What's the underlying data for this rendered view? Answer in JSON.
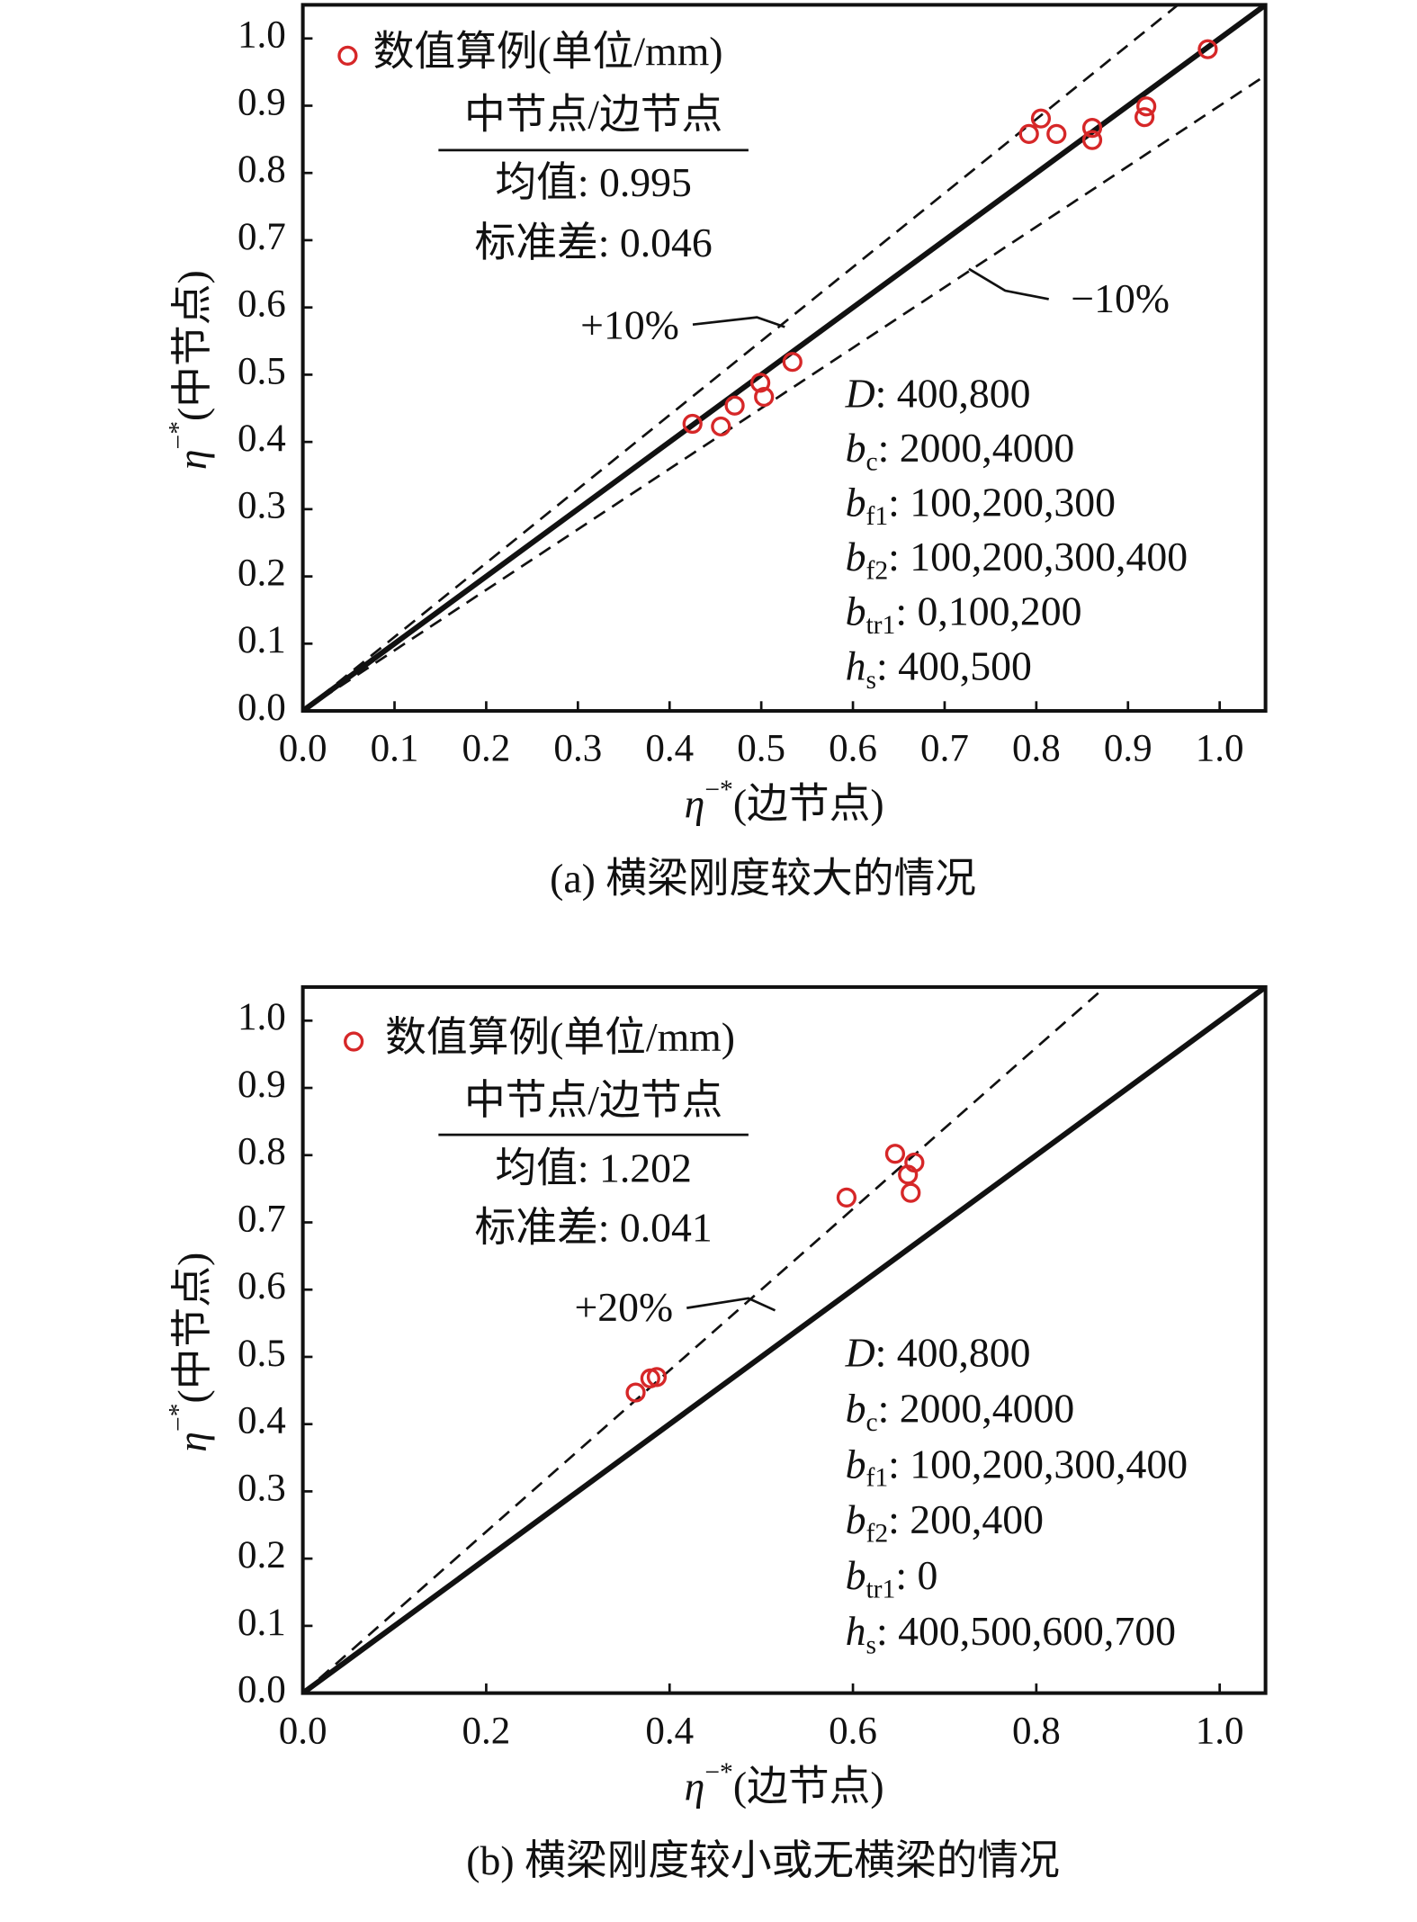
{
  "chart_data": [
    {
      "type": "scatter",
      "caption": "(a) 横梁刚度较大的情况",
      "xlabel": {
        "symbol": "η",
        "sup": "−*",
        "text": "(边节点)"
      },
      "ylabel": {
        "symbol": "η",
        "sup": "−*",
        "text": "(中节点)"
      },
      "xlim": [
        0,
        1.05
      ],
      "ylim": [
        0,
        1.05
      ],
      "xticks": [
        {
          "value": 0,
          "label": "0.0"
        },
        0.1,
        0.2,
        0.3,
        0.4,
        0.5,
        0.6,
        0.7,
        0.8,
        0.9,
        {
          "value": 1,
          "label": "1.0"
        }
      ],
      "yticks": [
        {
          "value": 0,
          "label": "0.0"
        },
        0.1,
        0.2,
        0.3,
        0.4,
        0.5,
        0.6,
        0.7,
        0.8,
        0.9,
        {
          "value": 1,
          "label": "1.0"
        }
      ],
      "x": [
        0.425,
        0.456,
        0.471,
        0.499,
        0.503,
        0.534,
        0.792,
        0.805,
        0.822,
        0.861,
        0.861,
        0.918,
        0.92,
        0.987
      ],
      "series": [
        {
          "name": "数值算例(单位/mm)",
          "color": "#d62728",
          "values": [
            0.427,
            0.423,
            0.454,
            0.488,
            0.467,
            0.519,
            0.858,
            0.881,
            0.858,
            0.867,
            0.849,
            0.883,
            0.899,
            0.984
          ]
        }
      ],
      "reference_lines": [
        {
          "slope": 1,
          "dash": false
        },
        {
          "slope": 1.1,
          "dash": true,
          "label": "+10%"
        },
        {
          "slope": 0.9,
          "dash": true,
          "label": "−10%"
        }
      ],
      "stats": {
        "heading": "中节点/边节点",
        "mean": "均值: 0.995",
        "std": "标准差: 0.046"
      },
      "params": [
        {
          "symbol": "D",
          "text": ": 400,800"
        },
        {
          "symbol": "b",
          "sub": "c",
          "text": ": 2000,4000"
        },
        {
          "symbol": "b",
          "sub": "f1",
          "text": ": 100,200,300"
        },
        {
          "symbol": "b",
          "sub": "f2",
          "text": ": 100,200,300,400"
        },
        {
          "symbol": "b",
          "sub": "tr1",
          "text": ": 0,100,200"
        },
        {
          "symbol": "h",
          "sub": "s",
          "text": ": 400,500"
        }
      ]
    },
    {
      "type": "scatter",
      "caption": "(b) 横梁刚度较小或无横梁的情况",
      "xlabel": {
        "symbol": "η",
        "sup": "−*",
        "text": "(边节点)"
      },
      "ylabel": {
        "symbol": "η",
        "sup": "−*",
        "text": "(中节点)"
      },
      "xlim": [
        0,
        1.05
      ],
      "ylim": [
        0,
        1.05
      ],
      "xticks": [
        {
          "value": 0,
          "label": "0.0"
        },
        0.2,
        0.4,
        0.6,
        0.8,
        {
          "value": 1,
          "label": "1.0"
        }
      ],
      "yticks": [
        {
          "value": 0,
          "label": "0.0"
        },
        0.1,
        0.2,
        0.3,
        0.4,
        0.5,
        0.6,
        0.7,
        0.8,
        0.9,
        {
          "value": 1,
          "label": "1.0"
        }
      ],
      "x": [
        0.363,
        0.379,
        0.386,
        0.593,
        0.646,
        0.667,
        0.66,
        0.663
      ],
      "series": [
        {
          "name": "数值算例(单位/mm)",
          "color": "#d62728",
          "values": [
            0.447,
            0.468,
            0.47,
            0.737,
            0.802,
            0.789,
            0.771,
            0.744
          ]
        }
      ],
      "reference_lines": [
        {
          "slope": 1,
          "dash": false
        },
        {
          "slope": 1.2,
          "dash": true,
          "label": "+20%"
        }
      ],
      "stats": {
        "heading": "中节点/边节点",
        "mean": "均值: 1.202",
        "std": "标准差: 0.041"
      },
      "params": [
        {
          "symbol": "D",
          "text": ": 400,800"
        },
        {
          "symbol": "b",
          "sub": "c",
          "text": ": 2000,4000"
        },
        {
          "symbol": "b",
          "sub": "f1",
          "text": ": 100,200,300,400"
        },
        {
          "symbol": "b",
          "sub": "f2",
          "text": ": 200,400"
        },
        {
          "symbol": "b",
          "sub": "tr1",
          "text": ": 0"
        },
        {
          "symbol": "h",
          "sub": "s",
          "text": ": 400,500,600,700"
        }
      ]
    }
  ]
}
